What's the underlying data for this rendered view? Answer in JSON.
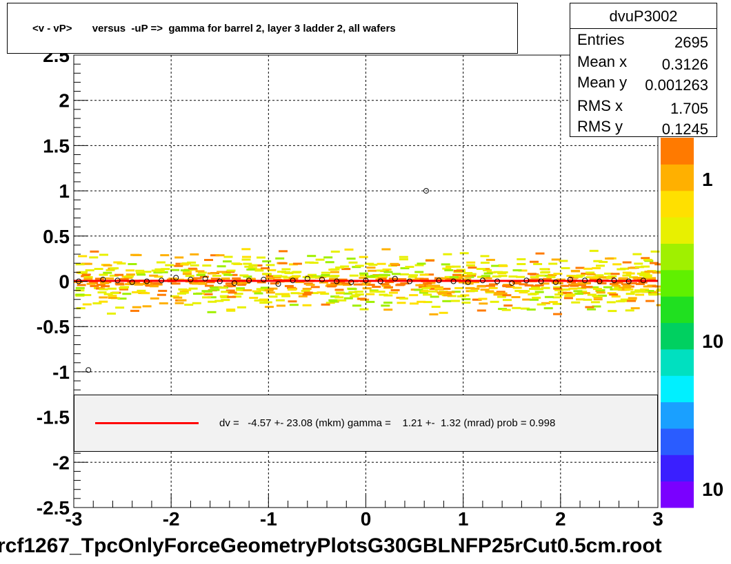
{
  "chart_data": {
    "type": "heatmap",
    "title": "<v - vP>       versus  -uP =>  gamma for barrel 2, layer 3 ladder 2, all wafers",
    "xlabel": "",
    "ylabel": "",
    "xlim": [
      -3,
      3
    ],
    "ylim": [
      -2.5,
      2.5
    ],
    "x_ticks": [
      "-3",
      "-2",
      "-1",
      "0",
      "1",
      "2",
      "3"
    ],
    "y_ticks": [
      "-2.5",
      "-2",
      "-1.5",
      "-1",
      "-0.5",
      "0",
      "0.5",
      "1",
      "1.5",
      "2",
      "2.5"
    ],
    "grid": true,
    "colorbar_labels": [
      "1",
      "10",
      "10"
    ],
    "colors": {
      "fit_line": "#ff0000",
      "palette": [
        "#7a00ff",
        "#3a1fff",
        "#2a5cff",
        "#1aa0ff",
        "#00f0ff",
        "#00e0c0",
        "#00d060",
        "#20e020",
        "#60f000",
        "#a0f000",
        "#e8f000",
        "#ffe000",
        "#ffb000",
        "#ff7a00"
      ]
    },
    "profile_points": [
      {
        "x": -2.95,
        "y": 0.0
      },
      {
        "x": -2.85,
        "y": -0.98
      },
      {
        "x": -2.7,
        "y": 0.02
      },
      {
        "x": -2.55,
        "y": 0.01
      },
      {
        "x": -2.4,
        "y": -0.01
      },
      {
        "x": -2.25,
        "y": 0.0
      },
      {
        "x": -2.1,
        "y": 0.01
      },
      {
        "x": -1.95,
        "y": 0.04
      },
      {
        "x": -1.8,
        "y": 0.02
      },
      {
        "x": -1.65,
        "y": 0.03
      },
      {
        "x": -1.5,
        "y": 0.0
      },
      {
        "x": -1.35,
        "y": -0.02
      },
      {
        "x": -1.2,
        "y": 0.01
      },
      {
        "x": -1.05,
        "y": 0.02
      },
      {
        "x": -0.9,
        "y": -0.03
      },
      {
        "x": -0.75,
        "y": 0.01
      },
      {
        "x": -0.6,
        "y": 0.03
      },
      {
        "x": -0.45,
        "y": 0.02
      },
      {
        "x": -0.3,
        "y": 0.0
      },
      {
        "x": -0.15,
        "y": -0.01
      },
      {
        "x": 0.0,
        "y": 0.01
      },
      {
        "x": 0.15,
        "y": 0.0
      },
      {
        "x": 0.3,
        "y": 0.03
      },
      {
        "x": 0.45,
        "y": 0.0
      },
      {
        "x": 0.62,
        "y": 1.0
      },
      {
        "x": 0.75,
        "y": 0.01
      },
      {
        "x": 0.9,
        "y": 0.0
      },
      {
        "x": 1.05,
        "y": -0.01
      },
      {
        "x": 1.2,
        "y": 0.01
      },
      {
        "x": 1.35,
        "y": 0.0
      },
      {
        "x": 1.5,
        "y": -0.02
      },
      {
        "x": 1.65,
        "y": 0.01
      },
      {
        "x": 1.8,
        "y": 0.0
      },
      {
        "x": 1.95,
        "y": -0.01
      },
      {
        "x": 2.1,
        "y": 0.02
      },
      {
        "x": 2.25,
        "y": 0.01
      },
      {
        "x": 2.4,
        "y": 0.0
      },
      {
        "x": 2.55,
        "y": 0.01
      },
      {
        "x": 2.7,
        "y": 0.0
      },
      {
        "x": 2.85,
        "y": 0.01
      }
    ],
    "fit": {
      "slope": 0.0,
      "intercept": 0.005
    }
  },
  "stats": {
    "name": "dvuP3002",
    "rows": [
      {
        "label": "Entries",
        "value": "2695"
      },
      {
        "label": "Mean x",
        "value": "0.3126"
      },
      {
        "label": "Mean y",
        "value": "0.001263"
      },
      {
        "label": "RMS x",
        "value": "1.705"
      },
      {
        "label": "RMS y",
        "value": "0.1245"
      }
    ]
  },
  "fit_legend": "dv =   -4.57 +- 23.08 (mkm) gamma =    1.21 +-  1.32 (mrad) prob = 0.998",
  "footer": "rcf1267_TpcOnlyForceGeometryPlotsG30GBLNFP25rCut0.5cm.root"
}
